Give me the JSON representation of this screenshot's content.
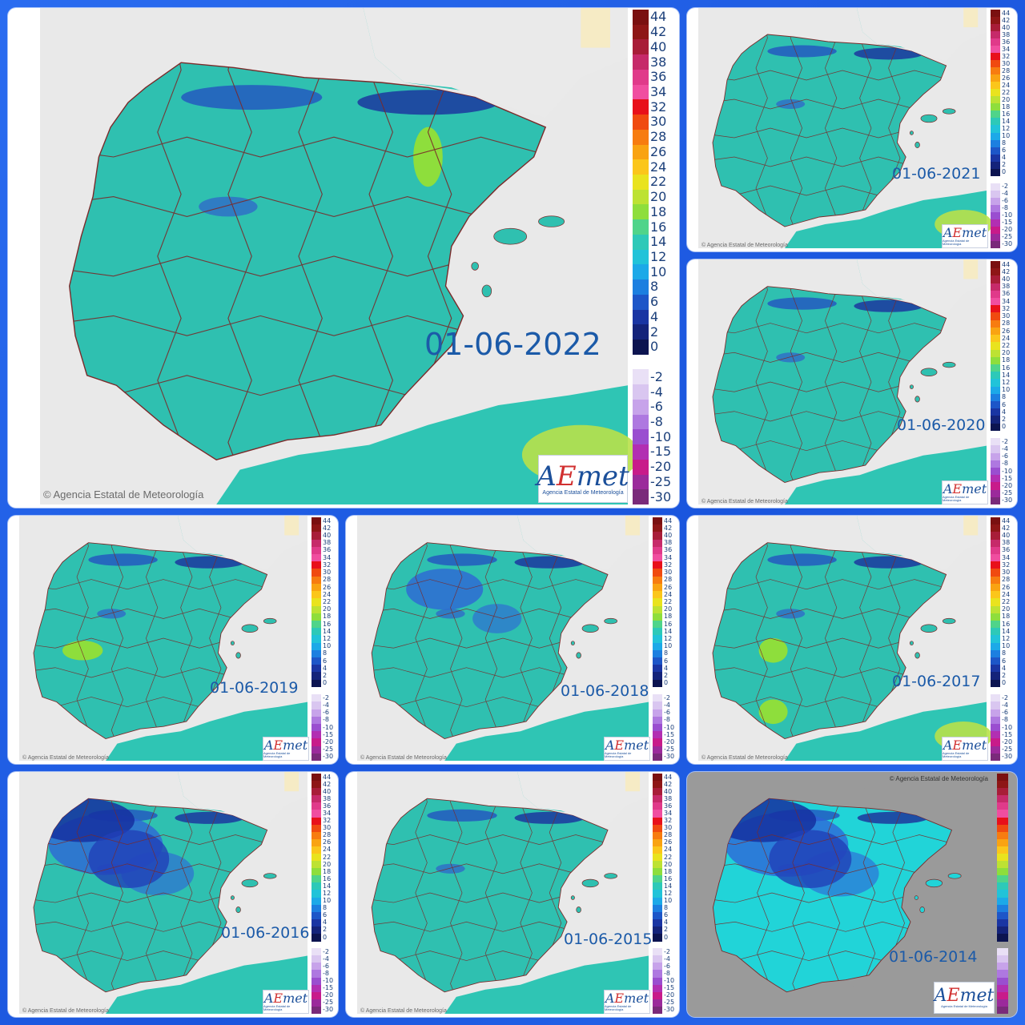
{
  "credit": "Agencia Estatal de Meteorología",
  "logo": {
    "main": "AEmet",
    "sub": "Agencia Estatal de Meteorología"
  },
  "legend": {
    "pos_labels": [
      "44",
      "42",
      "40",
      "38",
      "36",
      "34",
      "32",
      "30",
      "28",
      "26",
      "24",
      "22",
      "20",
      "18",
      "16",
      "14",
      "12",
      "10",
      "8",
      "6",
      "4",
      "2",
      "0"
    ],
    "neg_labels": [
      "-2",
      "-4",
      "-6",
      "-8",
      "-10",
      "-15",
      "-20",
      "-25",
      "-30"
    ],
    "pos_colors": [
      "#7a1010",
      "#8e1616",
      "#a81d38",
      "#c62a6a",
      "#e03a8a",
      "#f04ea0",
      "#e8101a",
      "#f04a10",
      "#f77c10",
      "#f9a312",
      "#fbc61b",
      "#e9e31e",
      "#bde233",
      "#8ede3c",
      "#4fd48a",
      "#2dc9b8",
      "#21c3d9",
      "#1ca9e8",
      "#1c7fe0",
      "#1d56c8",
      "#1a35a3",
      "#14237a",
      "#0c1450"
    ],
    "neg_colors": [
      "#e9e0f6",
      "#d9c6f0",
      "#c7a3ea",
      "#ae78e0",
      "#9a4ed0",
      "#b22fb2",
      "#c81b8a",
      "#9b2a9b",
      "#7a2a7a"
    ]
  },
  "maps": [
    {
      "id": "2022",
      "date": "01-06-2022",
      "panel": "main"
    },
    {
      "id": "2021",
      "date": "01-06-2021",
      "panel": "small"
    },
    {
      "id": "2020",
      "date": "01-06-2020",
      "panel": "small"
    },
    {
      "id": "2019",
      "date": "01-06-2019",
      "panel": "small"
    },
    {
      "id": "2018",
      "date": "01-06-2018",
      "panel": "small"
    },
    {
      "id": "2017",
      "date": "01-06-2017",
      "panel": "small"
    },
    {
      "id": "2016",
      "date": "01-06-2016",
      "panel": "small"
    },
    {
      "id": "2015",
      "date": "01-06-2015",
      "panel": "small"
    },
    {
      "id": "2014",
      "date": "01-06-2014",
      "panel": "small-variant"
    }
  ]
}
